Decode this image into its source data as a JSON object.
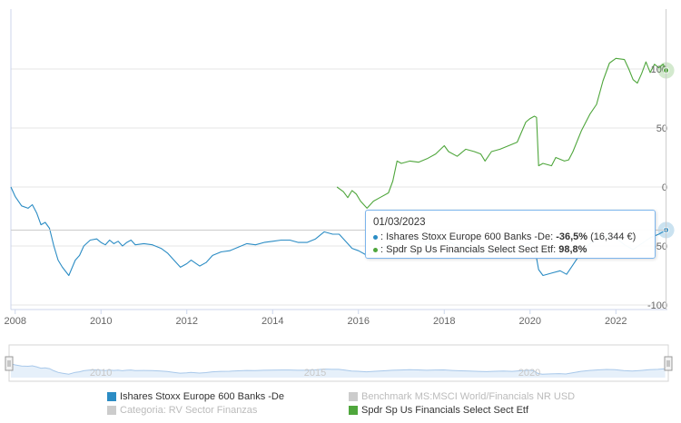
{
  "chart_data": {
    "type": "line",
    "x_ticks": [
      "2008",
      "2010",
      "2012",
      "2014",
      "2016",
      "2018",
      "2020",
      "2022"
    ],
    "y_ticks": [
      "100",
      "50",
      "0",
      "-50",
      "-100"
    ],
    "ylim": [
      -100,
      110
    ],
    "xlim": [
      2007.9,
      2023.2
    ],
    "grid": "horizontal",
    "series": [
      {
        "name": "Ishares Stoxx Europe 600 Banks -De",
        "color": "#2b8cc4",
        "points": [
          [
            2007.9,
            0
          ],
          [
            2008.0,
            -8
          ],
          [
            2008.15,
            -16
          ],
          [
            2008.3,
            -18
          ],
          [
            2008.4,
            -15
          ],
          [
            2008.5,
            -22
          ],
          [
            2008.6,
            -32
          ],
          [
            2008.7,
            -30
          ],
          [
            2008.8,
            -35
          ],
          [
            2008.9,
            -50
          ],
          [
            2009.0,
            -62
          ],
          [
            2009.1,
            -68
          ],
          [
            2009.25,
            -75
          ],
          [
            2009.4,
            -62
          ],
          [
            2009.5,
            -58
          ],
          [
            2009.6,
            -50
          ],
          [
            2009.75,
            -45
          ],
          [
            2009.9,
            -44
          ],
          [
            2010.0,
            -47
          ],
          [
            2010.1,
            -49
          ],
          [
            2010.2,
            -45
          ],
          [
            2010.3,
            -48
          ],
          [
            2010.4,
            -46
          ],
          [
            2010.5,
            -50
          ],
          [
            2010.6,
            -47
          ],
          [
            2010.7,
            -45
          ],
          [
            2010.8,
            -49
          ],
          [
            2011.0,
            -48
          ],
          [
            2011.2,
            -49
          ],
          [
            2011.4,
            -52
          ],
          [
            2011.55,
            -56
          ],
          [
            2011.7,
            -62
          ],
          [
            2011.85,
            -68
          ],
          [
            2012.0,
            -65
          ],
          [
            2012.1,
            -62
          ],
          [
            2012.3,
            -67
          ],
          [
            2012.45,
            -64
          ],
          [
            2012.6,
            -58
          ],
          [
            2012.8,
            -55
          ],
          [
            2013.0,
            -54
          ],
          [
            2013.2,
            -51
          ],
          [
            2013.4,
            -48
          ],
          [
            2013.6,
            -49
          ],
          [
            2013.8,
            -47
          ],
          [
            2014.0,
            -46
          ],
          [
            2014.2,
            -45
          ],
          [
            2014.4,
            -45
          ],
          [
            2014.6,
            -47
          ],
          [
            2014.8,
            -47
          ],
          [
            2015.0,
            -44
          ],
          [
            2015.2,
            -38
          ],
          [
            2015.4,
            -40
          ],
          [
            2015.55,
            -40
          ],
          [
            2015.7,
            -46
          ],
          [
            2015.85,
            -52
          ],
          [
            2016.0,
            -54
          ],
          [
            2016.2,
            -58
          ],
          [
            2016.4,
            -54
          ],
          [
            2016.6,
            -51
          ],
          [
            2016.8,
            -47
          ],
          [
            2017.0,
            -45
          ],
          [
            2017.2,
            -43
          ],
          [
            2017.4,
            -44
          ],
          [
            2017.6,
            -47
          ],
          [
            2017.8,
            -45
          ],
          [
            2018.0,
            -44
          ],
          [
            2018.2,
            -48
          ],
          [
            2018.4,
            -51
          ],
          [
            2018.6,
            -53
          ],
          [
            2018.8,
            -55
          ],
          [
            2019.0,
            -57
          ],
          [
            2019.2,
            -54
          ],
          [
            2019.4,
            -52
          ],
          [
            2019.6,
            -55
          ],
          [
            2019.8,
            -50
          ],
          [
            2020.0,
            -47
          ],
          [
            2020.1,
            -50
          ],
          [
            2020.2,
            -70
          ],
          [
            2020.3,
            -75
          ],
          [
            2020.5,
            -73
          ],
          [
            2020.7,
            -71
          ],
          [
            2020.85,
            -74
          ],
          [
            2021.0,
            -66
          ],
          [
            2021.2,
            -55
          ],
          [
            2021.4,
            -48
          ],
          [
            2021.6,
            -44
          ],
          [
            2021.8,
            -41
          ],
          [
            2022.0,
            -43
          ],
          [
            2022.2,
            -49
          ],
          [
            2022.4,
            -53
          ],
          [
            2022.6,
            -48
          ],
          [
            2022.8,
            -43
          ],
          [
            2023.0,
            -40
          ],
          [
            2023.17,
            -36.5
          ]
        ]
      },
      {
        "name": "Spdr Sp Us Financials Select Sect Etf",
        "color": "#4fa63c",
        "points": [
          [
            2015.5,
            0
          ],
          [
            2015.65,
            -4
          ],
          [
            2015.75,
            -9
          ],
          [
            2015.85,
            -3
          ],
          [
            2015.95,
            -6
          ],
          [
            2016.05,
            -12
          ],
          [
            2016.2,
            -18
          ],
          [
            2016.35,
            -12
          ],
          [
            2016.5,
            -9
          ],
          [
            2016.7,
            -5
          ],
          [
            2016.8,
            5
          ],
          [
            2016.9,
            22
          ],
          [
            2017.0,
            20
          ],
          [
            2017.2,
            22
          ],
          [
            2017.4,
            21
          ],
          [
            2017.6,
            24
          ],
          [
            2017.8,
            28
          ],
          [
            2018.0,
            35
          ],
          [
            2018.1,
            30
          ],
          [
            2018.3,
            26
          ],
          [
            2018.5,
            32
          ],
          [
            2018.7,
            30
          ],
          [
            2018.85,
            28
          ],
          [
            2018.95,
            22
          ],
          [
            2019.1,
            30
          ],
          [
            2019.3,
            32
          ],
          [
            2019.5,
            35
          ],
          [
            2019.7,
            38
          ],
          [
            2019.9,
            55
          ],
          [
            2020.0,
            58
          ],
          [
            2020.1,
            60
          ],
          [
            2020.15,
            59
          ],
          [
            2020.2,
            18
          ],
          [
            2020.3,
            20
          ],
          [
            2020.5,
            18
          ],
          [
            2020.6,
            25
          ],
          [
            2020.8,
            22
          ],
          [
            2020.9,
            23
          ],
          [
            2021.0,
            30
          ],
          [
            2021.2,
            48
          ],
          [
            2021.4,
            62
          ],
          [
            2021.55,
            70
          ],
          [
            2021.7,
            90
          ],
          [
            2021.85,
            105
          ],
          [
            2022.0,
            109
          ],
          [
            2022.2,
            108
          ],
          [
            2022.3,
            100
          ],
          [
            2022.4,
            91
          ],
          [
            2022.5,
            88
          ],
          [
            2022.6,
            96
          ],
          [
            2022.7,
            106
          ],
          [
            2022.8,
            97
          ],
          [
            2022.9,
            104
          ],
          [
            2023.0,
            101
          ],
          [
            2023.1,
            104
          ],
          [
            2023.17,
            98.8
          ]
        ]
      }
    ]
  },
  "tooltip": {
    "date": "01/03/2023",
    "row1_name": ": Ishares Stoxx Europe 600 Banks -De: ",
    "row1_value": "-36,5%",
    "row1_extra": " (16,344 €)",
    "row2_name": ": Spdr Sp Us Financials Select Sect Etf: ",
    "row2_value": "98,8%"
  },
  "navigator": {
    "ticks": [
      "2010",
      "2015",
      "2020"
    ]
  },
  "legend": {
    "items": [
      {
        "label": "Ishares Stoxx Europe 600 Banks -De",
        "color": "#2b8cc4"
      },
      {
        "label": "Benchmark MS:MSCI World/Financials NR USD",
        "color": "#cccccc"
      },
      {
        "label": "Categoria: RV Sector Finanzas",
        "color": "#cccccc"
      },
      {
        "label": "Spdr Sp Us Financials Select Sect Etf",
        "color": "#4fa63c"
      }
    ]
  }
}
